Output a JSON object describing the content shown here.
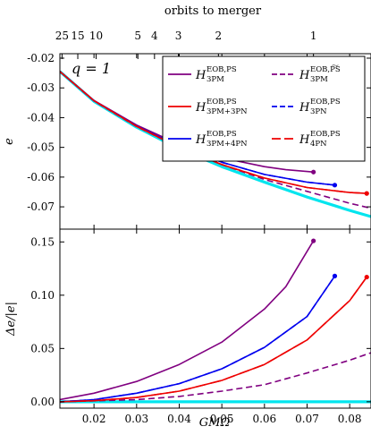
{
  "chart_data": {
    "type": "line",
    "top_axis": {
      "title": "orbits to merger",
      "ticks": [
        {
          "label": "25",
          "x": 0.0125
        },
        {
          "label": "15",
          "x": 0.0162
        },
        {
          "label": "10",
          "x": 0.0205
        },
        {
          "label": "5",
          "x": 0.0303
        },
        {
          "label": "4",
          "x": 0.0342
        },
        {
          "label": "3",
          "x": 0.0398
        },
        {
          "label": "2",
          "x": 0.0492
        },
        {
          "label": "1",
          "x": 0.0715
        }
      ]
    },
    "annotation": "q = 1",
    "xlabel": "GMΩ",
    "xlim": [
      0.012,
      0.085
    ],
    "xticks": [
      "0.02",
      "0.03",
      "0.04",
      "0.05",
      "0.06",
      "0.07",
      "0.08"
    ],
    "xtick_values": [
      0.02,
      0.03,
      0.04,
      0.05,
      0.06,
      0.07,
      0.08
    ],
    "panels": [
      {
        "name": "top",
        "ylabel": "e",
        "ylim": [
          -0.0775,
          -0.0185
        ],
        "yticks": [
          "-0.02",
          "-0.03",
          "-0.04",
          "-0.05",
          "-0.06",
          "-0.07"
        ],
        "ytick_values": [
          -0.02,
          -0.03,
          -0.04,
          -0.05,
          -0.06,
          -0.07
        ],
        "series": [
          {
            "key": "nr",
            "color": "#00e5ee",
            "dash": "solid",
            "width": 3.2,
            "points": [
              [
                0.012,
                -0.0245
              ],
              [
                0.02,
                -0.0345
              ],
              [
                0.03,
                -0.0432
              ],
              [
                0.04,
                -0.0505
              ],
              [
                0.05,
                -0.0565
              ],
              [
                0.06,
                -0.0617
              ],
              [
                0.07,
                -0.0667
              ],
              [
                0.08,
                -0.0712
              ],
              [
                0.085,
                -0.0733
              ]
            ]
          },
          {
            "key": "3pm",
            "color": "#800080",
            "dash": "solid",
            "width": 1.6,
            "points": [
              [
                0.012,
                -0.0245
              ],
              [
                0.02,
                -0.0342
              ],
              [
                0.03,
                -0.0425
              ],
              [
                0.04,
                -0.049
              ],
              [
                0.05,
                -0.0535
              ],
              [
                0.06,
                -0.0565
              ],
              [
                0.065,
                -0.0575
              ],
              [
                0.0715,
                -0.0583
              ]
            ],
            "end_marker": true
          },
          {
            "key": "3pm_tilde",
            "color": "#800080",
            "dash": "dashed",
            "width": 1.6,
            "points": [
              [
                0.012,
                -0.0245
              ],
              [
                0.02,
                -0.0344
              ],
              [
                0.03,
                -0.043
              ],
              [
                0.04,
                -0.0501
              ],
              [
                0.05,
                -0.0558
              ],
              [
                0.06,
                -0.0608
              ],
              [
                0.07,
                -0.0648
              ],
              [
                0.08,
                -0.0688
              ],
              [
                0.085,
                -0.0705
              ]
            ]
          },
          {
            "key": "3pm4pn",
            "color": "#0000ee",
            "dash": "solid",
            "width": 1.6,
            "points": [
              [
                0.012,
                -0.0245
              ],
              [
                0.02,
                -0.0343
              ],
              [
                0.03,
                -0.0428
              ],
              [
                0.04,
                -0.0497
              ],
              [
                0.05,
                -0.055
              ],
              [
                0.06,
                -0.0591
              ],
              [
                0.07,
                -0.0617
              ],
              [
                0.0765,
                -0.0627
              ]
            ],
            "end_marker": true
          },
          {
            "key": "3pn",
            "color": "#0000ee",
            "dash": "dashed",
            "width": 1.6,
            "points": [
              [
                0.012,
                -0.0245
              ],
              [
                0.02,
                -0.0343
              ],
              [
                0.03,
                -0.0428
              ],
              [
                0.04,
                -0.0497
              ],
              [
                0.05,
                -0.055
              ],
              [
                0.06,
                -0.0591
              ],
              [
                0.07,
                -0.0617
              ],
              [
                0.0765,
                -0.0627
              ]
            ],
            "end_marker": false
          },
          {
            "key": "3pm3pn",
            "color": "#ee0000",
            "dash": "solid",
            "width": 1.6,
            "points": [
              [
                0.012,
                -0.0245
              ],
              [
                0.02,
                -0.0343
              ],
              [
                0.03,
                -0.0429
              ],
              [
                0.04,
                -0.05
              ],
              [
                0.05,
                -0.0558
              ],
              [
                0.06,
                -0.0603
              ],
              [
                0.07,
                -0.0635
              ],
              [
                0.08,
                -0.0652
              ],
              [
                0.084,
                -0.0655
              ]
            ],
            "end_marker": true
          },
          {
            "key": "4pn",
            "color": "#ee0000",
            "dash": "longdash",
            "width": 1.6,
            "points": [
              [
                0.012,
                -0.0245
              ],
              [
                0.02,
                -0.0343
              ],
              [
                0.03,
                -0.0429
              ],
              [
                0.04,
                -0.05
              ],
              [
                0.05,
                -0.0558
              ],
              [
                0.06,
                -0.0603
              ],
              [
                0.07,
                -0.0635
              ],
              [
                0.08,
                -0.0652
              ],
              [
                0.084,
                -0.0655
              ]
            ],
            "end_marker": false
          }
        ]
      },
      {
        "name": "bottom",
        "ylabel": "Δe/|e|",
        "ylim": [
          -0.006,
          0.162
        ],
        "yticks": [
          "0.00",
          "0.05",
          "0.10",
          "0.15"
        ],
        "ytick_values": [
          0.0,
          0.05,
          0.1,
          0.15
        ],
        "series": [
          {
            "key": "nr",
            "color": "#00e5ee",
            "dash": "solid",
            "width": 3.2,
            "points": [
              [
                0.012,
                0.0
              ],
              [
                0.085,
                0.0
              ]
            ]
          },
          {
            "key": "3pm",
            "color": "#800080",
            "dash": "solid",
            "width": 1.6,
            "points": [
              [
                0.012,
                0.002
              ],
              [
                0.02,
                0.008
              ],
              [
                0.03,
                0.019
              ],
              [
                0.04,
                0.035
              ],
              [
                0.05,
                0.056
              ],
              [
                0.06,
                0.087
              ],
              [
                0.065,
                0.108
              ],
              [
                0.0715,
                0.151
              ]
            ],
            "end_marker": true
          },
          {
            "key": "3pm_tilde",
            "color": "#800080",
            "dash": "dashed",
            "width": 1.6,
            "points": [
              [
                0.012,
                0.0
              ],
              [
                0.03,
                0.002
              ],
              [
                0.04,
                0.005
              ],
              [
                0.05,
                0.01
              ],
              [
                0.06,
                0.016
              ],
              [
                0.07,
                0.027
              ],
              [
                0.08,
                0.039
              ],
              [
                0.085,
                0.046
              ]
            ]
          },
          {
            "key": "3pm4pn",
            "color": "#0000ee",
            "dash": "solid",
            "width": 1.6,
            "points": [
              [
                0.012,
                0.0
              ],
              [
                0.02,
                0.002
              ],
              [
                0.03,
                0.008
              ],
              [
                0.04,
                0.017
              ],
              [
                0.05,
                0.031
              ],
              [
                0.06,
                0.051
              ],
              [
                0.07,
                0.08
              ],
              [
                0.0765,
                0.118
              ]
            ],
            "end_marker": true
          },
          {
            "key": "3pn",
            "color": "#0000ee",
            "dash": "dashed",
            "width": 1.6,
            "points": [
              [
                0.012,
                0.0
              ],
              [
                0.02,
                0.002
              ],
              [
                0.03,
                0.008
              ],
              [
                0.04,
                0.017
              ],
              [
                0.05,
                0.031
              ],
              [
                0.06,
                0.051
              ],
              [
                0.07,
                0.08
              ],
              [
                0.0765,
                0.118
              ]
            ],
            "end_marker": false
          },
          {
            "key": "3pm3pn",
            "color": "#ee0000",
            "dash": "solid",
            "width": 1.6,
            "points": [
              [
                0.012,
                0.0
              ],
              [
                0.02,
                0.001
              ],
              [
                0.03,
                0.004
              ],
              [
                0.04,
                0.01
              ],
              [
                0.05,
                0.02
              ],
              [
                0.06,
                0.035
              ],
              [
                0.07,
                0.058
              ],
              [
                0.08,
                0.095
              ],
              [
                0.084,
                0.117
              ]
            ],
            "end_marker": true
          },
          {
            "key": "4pn",
            "color": "#ee0000",
            "dash": "longdash",
            "width": 1.6,
            "points": [
              [
                0.012,
                0.0
              ],
              [
                0.02,
                0.001
              ],
              [
                0.03,
                0.004
              ],
              [
                0.04,
                0.01
              ],
              [
                0.05,
                0.02
              ],
              [
                0.06,
                0.035
              ],
              [
                0.07,
                0.058
              ],
              [
                0.08,
                0.095
              ],
              [
                0.084,
                0.117
              ]
            ],
            "end_marker": false
          }
        ]
      }
    ],
    "legend": {
      "placement": "top-right",
      "entries": [
        {
          "key": "3pm",
          "main": "H",
          "sup": "EOB,PS",
          "sub": "3PM",
          "color": "#800080",
          "dash": "solid"
        },
        {
          "key": "3pm_tilde",
          "main": "H",
          "sup": "EOB,P͠S",
          "sub": "3PM",
          "color": "#800080",
          "dash": "dashed"
        },
        {
          "key": "3pm3pn",
          "main": "H",
          "sup": "EOB,PS",
          "sub": "3PM+3PN",
          "color": "#ee0000",
          "dash": "solid"
        },
        {
          "key": "3pn",
          "main": "H",
          "sup": "EOB,PS",
          "sub": "3PN",
          "color": "#0000ee",
          "dash": "dashed"
        },
        {
          "key": "3pm4pn",
          "main": "H",
          "sup": "EOB,PS",
          "sub": "3PM+4PN",
          "color": "#0000ee",
          "dash": "solid"
        },
        {
          "key": "4pn",
          "main": "H",
          "sup": "EOB,PS",
          "sub": "4PN",
          "color": "#ee0000",
          "dash": "longdash"
        }
      ]
    }
  }
}
